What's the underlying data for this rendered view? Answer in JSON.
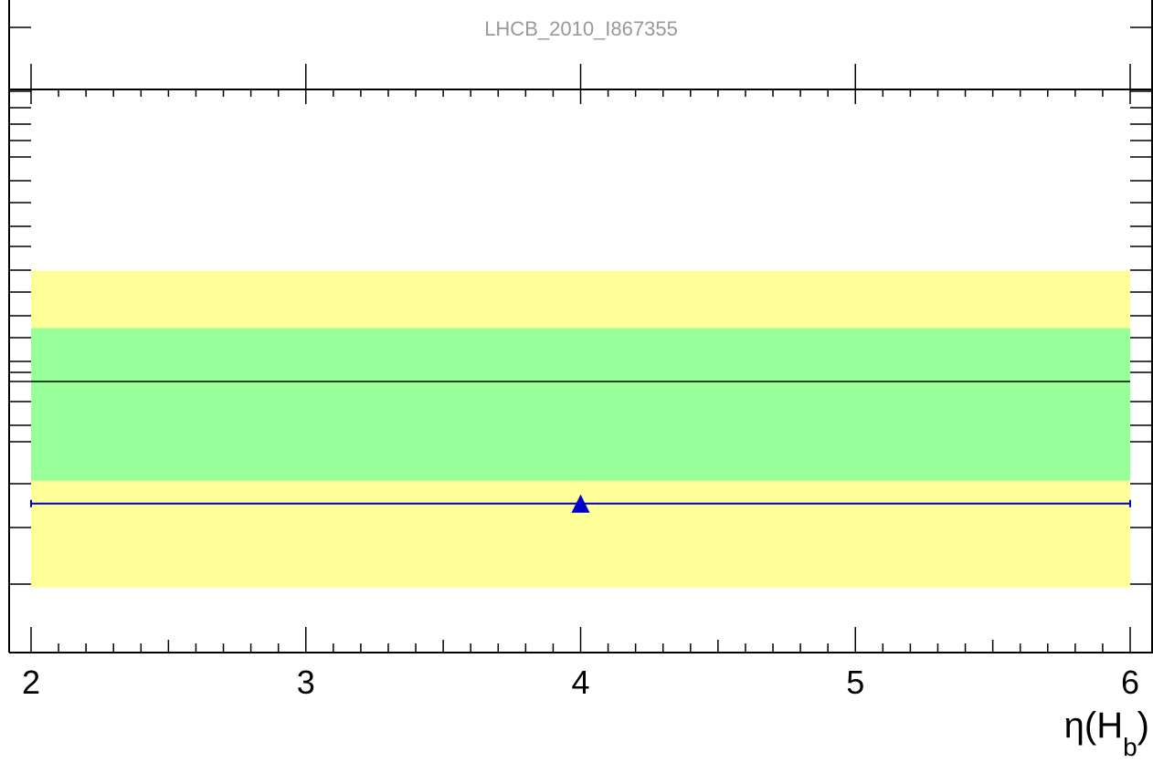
{
  "chart_data": {
    "type": "scatter",
    "title": "LHCB_2010_I867355",
    "xlabel": "η(H",
    "xlabel_subscript": "b",
    "xlabel_close": ")",
    "xlim": [
      2,
      6
    ],
    "ylim": [
      0,
      1
    ],
    "x_ticks": [
      "2",
      "3",
      "4",
      "5",
      "6"
    ],
    "reference_line": 0.5,
    "bands": [
      {
        "name": "outer",
        "color": "#ffff99",
        "range": [
          0.23,
          0.645
        ]
      },
      {
        "name": "inner",
        "color": "#99ff99",
        "range": [
          0.37,
          0.57
        ]
      }
    ],
    "series": [
      {
        "marker": "triangle",
        "color": "#0000cc",
        "points": [
          {
            "x": 4.0,
            "y": 0.34,
            "xerr_low": 2.0,
            "xerr_high": 6.0
          }
        ]
      }
    ],
    "grid": false
  }
}
